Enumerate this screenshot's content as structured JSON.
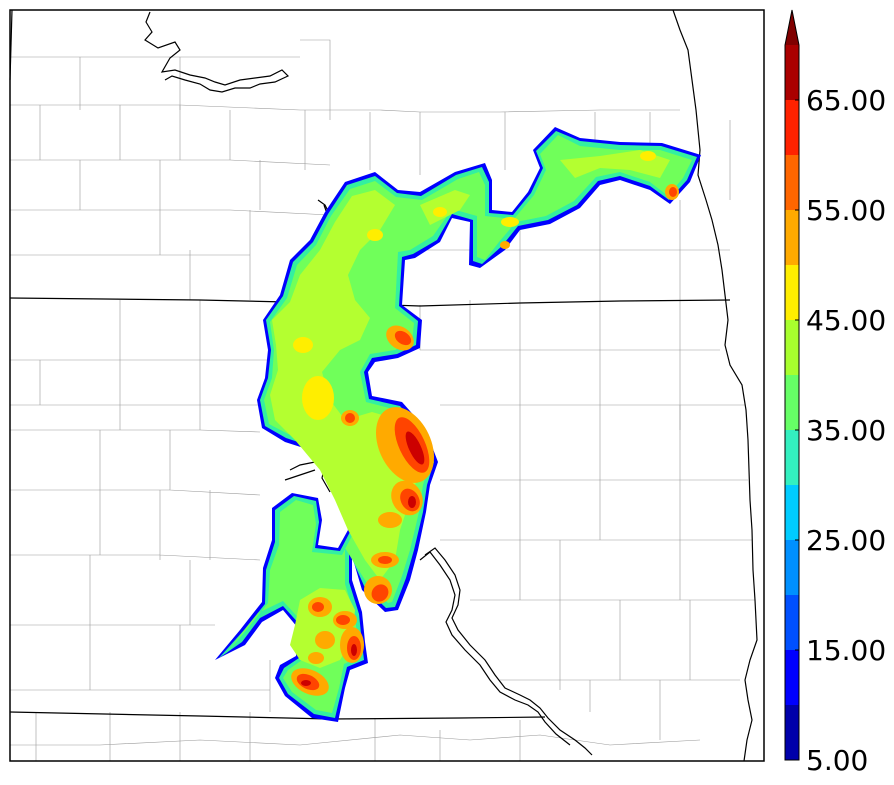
{
  "map": {
    "colors": {
      "state_border": "#000000",
      "county_line": "#9a9a9a",
      "river": "#000000",
      "background": "#ffffff"
    }
  },
  "colorbar": {
    "min_label": "5.00",
    "extend": "max",
    "tick_labels": [
      "5.00",
      "15.00",
      "25.00",
      "35.00",
      "45.00",
      "55.00",
      "65.00"
    ],
    "levels": [
      {
        "min": 5,
        "max": 10,
        "color": "#0000aa"
      },
      {
        "min": 10,
        "max": 15,
        "color": "#0000ff"
      },
      {
        "min": 15,
        "max": 20,
        "color": "#0050ff"
      },
      {
        "min": 20,
        "max": 25,
        "color": "#0090ff"
      },
      {
        "min": 25,
        "max": 30,
        "color": "#00ccff"
      },
      {
        "min": 30,
        "max": 35,
        "color": "#33f0c0"
      },
      {
        "min": 35,
        "max": 40,
        "color": "#66ff66"
      },
      {
        "min": 40,
        "max": 45,
        "color": "#a8ff2e"
      },
      {
        "min": 45,
        "max": 50,
        "color": "#ffee00"
      },
      {
        "min": 50,
        "max": 55,
        "color": "#ffaa00"
      },
      {
        "min": 55,
        "max": 60,
        "color": "#ff6600"
      },
      {
        "min": 60,
        "max": 65,
        "color": "#ff2200"
      },
      {
        "min": 65,
        "max": 70,
        "color": "#aa0000"
      }
    ],
    "extend_color": "#800000"
  }
}
